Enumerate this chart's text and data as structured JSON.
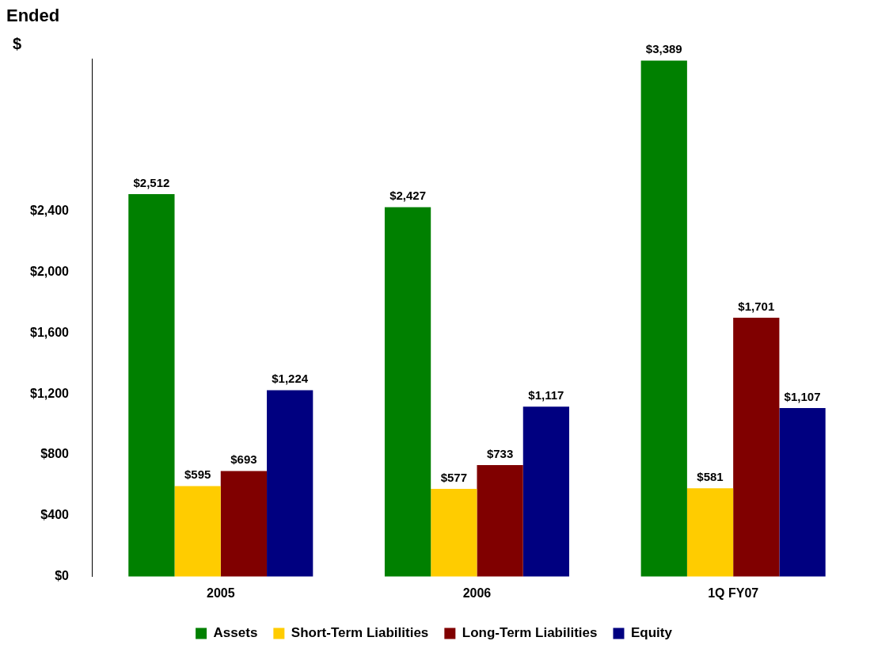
{
  "chart_data": {
    "type": "bar",
    "title": "Ended",
    "ylabel": "$",
    "categories": [
      "2005",
      "2006",
      "1Q FY07"
    ],
    "series": [
      {
        "name": "Assets",
        "color": "#008000",
        "values": [
          2512,
          2427,
          3389
        ],
        "value_labels": [
          "$2,512",
          "$2,427",
          "$3,389"
        ]
      },
      {
        "name": "Short-Term Liabilities",
        "color": "#ffcc00",
        "values": [
          595,
          577,
          581
        ],
        "value_labels": [
          "$595",
          "$577",
          "$581"
        ]
      },
      {
        "name": "Long-Term Liabilities",
        "color": "#800000",
        "values": [
          693,
          733,
          1701
        ],
        "value_labels": [
          "$693",
          "$733",
          "$1,701"
        ]
      },
      {
        "name": "Equity",
        "color": "#000080",
        "values": [
          1224,
          1117,
          1107
        ],
        "value_labels": [
          "$1,224",
          "$1,117",
          "$1,107"
        ]
      }
    ],
    "ylim": [
      0,
      3400
    ],
    "yticks": [
      {
        "value": 0,
        "label": "$0"
      },
      {
        "value": 400,
        "label": "$400"
      },
      {
        "value": 800,
        "label": "$800"
      },
      {
        "value": 1200,
        "label": "$1,200"
      },
      {
        "value": 1600,
        "label": "$1,600"
      },
      {
        "value": 2000,
        "label": "$2,000"
      },
      {
        "value": 2400,
        "label": "$2,400"
      }
    ],
    "grid": false,
    "legend": "bottom"
  }
}
